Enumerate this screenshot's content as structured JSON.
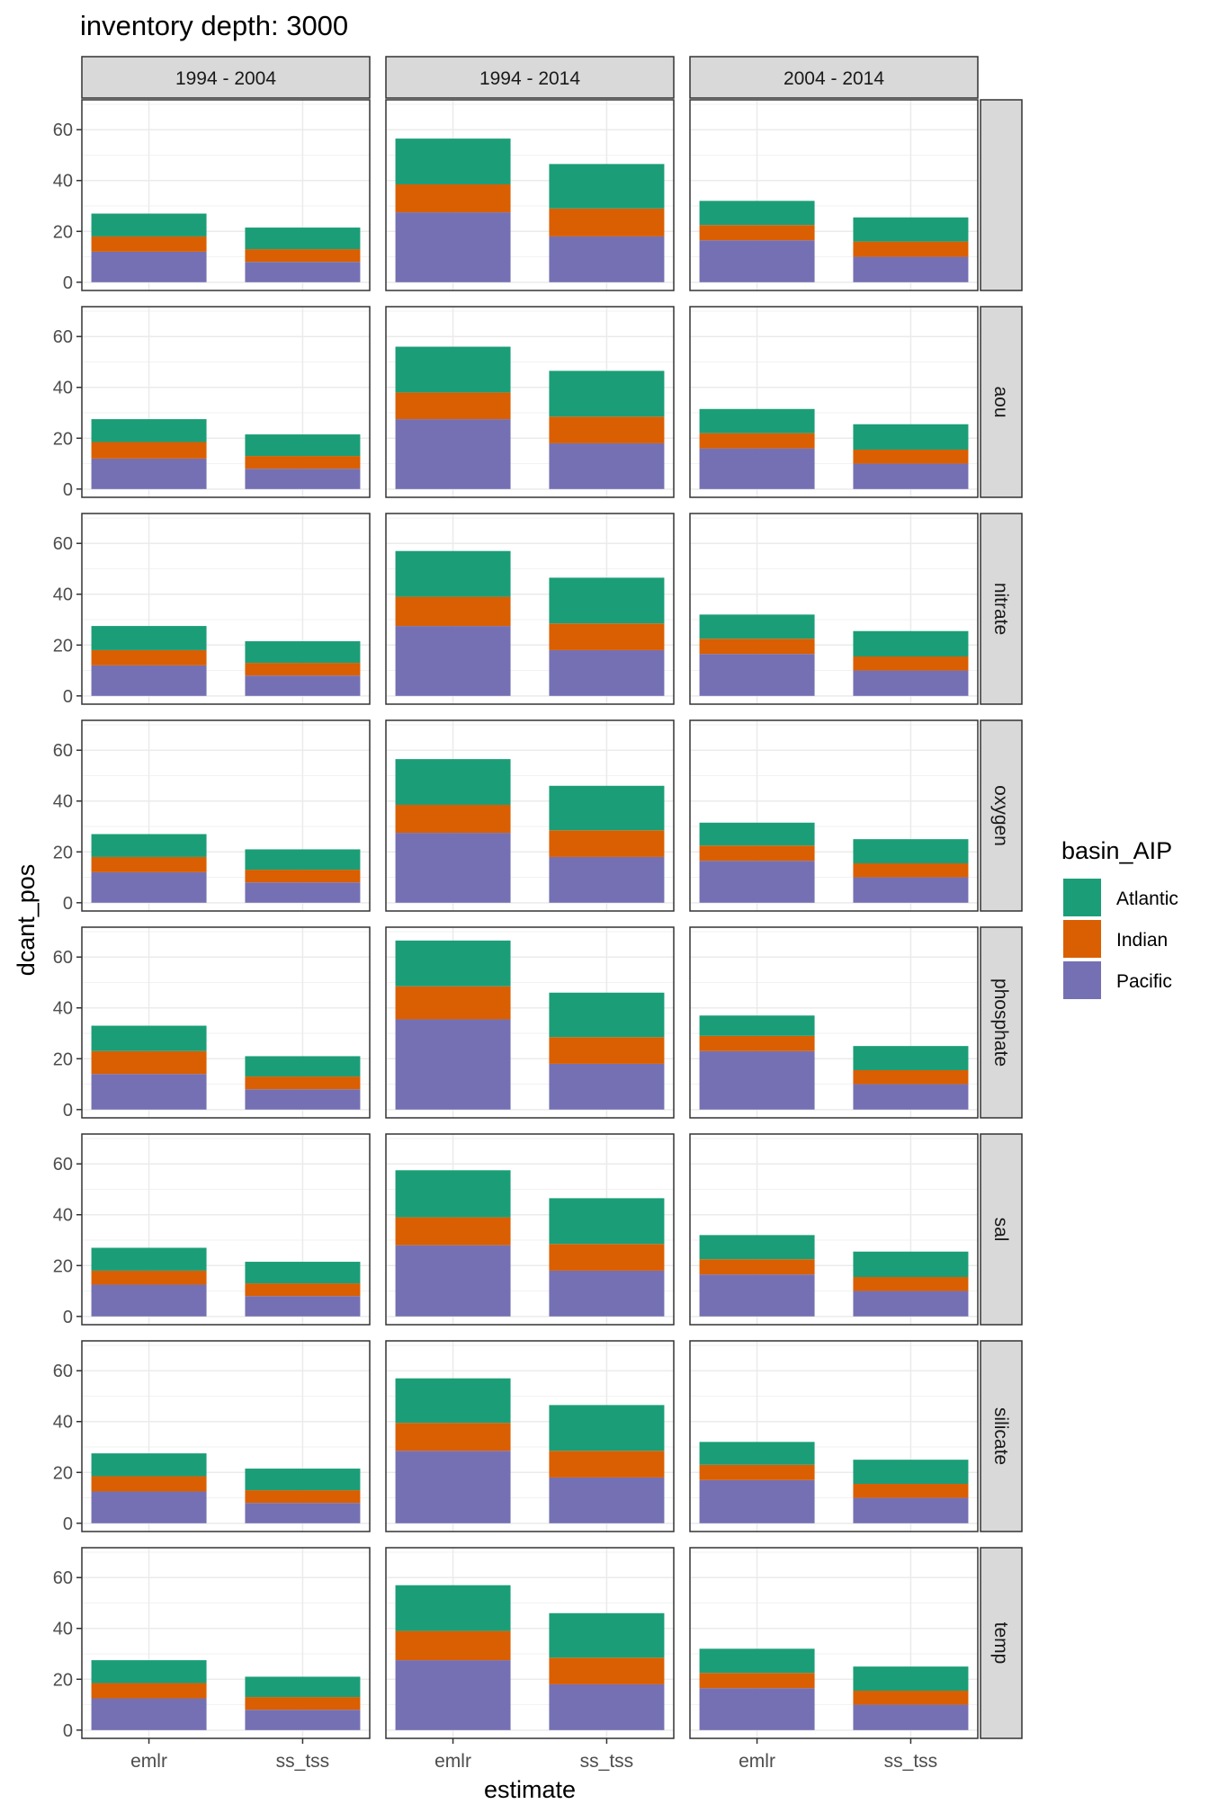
{
  "chart_data": {
    "type": "bar",
    "stacked": true,
    "faceted": true,
    "title": "inventory depth: 3000",
    "xlabel": "estimate",
    "ylabel": "dcant_pos",
    "ylim": [
      0,
      70
    ],
    "y_ticks": [
      0,
      20,
      40,
      60
    ],
    "grid": true,
    "legend": {
      "title": "basin_AIP",
      "position": "right",
      "entries": [
        "Atlantic",
        "Indian",
        "Pacific"
      ]
    },
    "colors": {
      "Atlantic": "#1b9e77",
      "Indian": "#d95f02",
      "Pacific": "#7570b3"
    },
    "categories": [
      "emlr",
      "ss_tss"
    ],
    "stack_order": [
      "Pacific",
      "Indian",
      "Atlantic"
    ],
    "col_facets": [
      "1994 - 2004",
      "1994 - 2014",
      "2004 - 2014"
    ],
    "row_facets": [
      "",
      "aou",
      "nitrate",
      "oxygen",
      "phosphate",
      "sal",
      "silicate",
      "temp"
    ],
    "panels": [
      [
        {
          "emlr": {
            "Pacific": 12,
            "Indian": 6,
            "Atlantic": 9
          },
          "ss_tss": {
            "Pacific": 8,
            "Indian": 5,
            "Atlantic": 8.5
          }
        },
        {
          "emlr": {
            "Pacific": 27.5,
            "Indian": 11,
            "Atlantic": 18
          },
          "ss_tss": {
            "Pacific": 18,
            "Indian": 11,
            "Atlantic": 17.5
          }
        },
        {
          "emlr": {
            "Pacific": 16.5,
            "Indian": 6,
            "Atlantic": 9.5
          },
          "ss_tss": {
            "Pacific": 10,
            "Indian": 6,
            "Atlantic": 9.5
          }
        }
      ],
      [
        {
          "emlr": {
            "Pacific": 12,
            "Indian": 6.5,
            "Atlantic": 9
          },
          "ss_tss": {
            "Pacific": 8,
            "Indian": 5,
            "Atlantic": 8.5
          }
        },
        {
          "emlr": {
            "Pacific": 27.5,
            "Indian": 10.5,
            "Atlantic": 18
          },
          "ss_tss": {
            "Pacific": 18,
            "Indian": 10.5,
            "Atlantic": 18
          }
        },
        {
          "emlr": {
            "Pacific": 16,
            "Indian": 6,
            "Atlantic": 9.5
          },
          "ss_tss": {
            "Pacific": 10,
            "Indian": 5.5,
            "Atlantic": 10
          }
        }
      ],
      [
        {
          "emlr": {
            "Pacific": 12,
            "Indian": 6,
            "Atlantic": 9.5
          },
          "ss_tss": {
            "Pacific": 8,
            "Indian": 5,
            "Atlantic": 8.5
          }
        },
        {
          "emlr": {
            "Pacific": 27.5,
            "Indian": 11.5,
            "Atlantic": 18
          },
          "ss_tss": {
            "Pacific": 18,
            "Indian": 10.5,
            "Atlantic": 18
          }
        },
        {
          "emlr": {
            "Pacific": 16.5,
            "Indian": 6,
            "Atlantic": 9.5
          },
          "ss_tss": {
            "Pacific": 10,
            "Indian": 5.5,
            "Atlantic": 10
          }
        }
      ],
      [
        {
          "emlr": {
            "Pacific": 12,
            "Indian": 6,
            "Atlantic": 9
          },
          "ss_tss": {
            "Pacific": 8,
            "Indian": 5,
            "Atlantic": 8
          }
        },
        {
          "emlr": {
            "Pacific": 27.5,
            "Indian": 11,
            "Atlantic": 18
          },
          "ss_tss": {
            "Pacific": 18,
            "Indian": 10.5,
            "Atlantic": 17.5
          }
        },
        {
          "emlr": {
            "Pacific": 16.5,
            "Indian": 6,
            "Atlantic": 9
          },
          "ss_tss": {
            "Pacific": 10,
            "Indian": 5.5,
            "Atlantic": 9.5
          }
        }
      ],
      [
        {
          "emlr": {
            "Pacific": 14,
            "Indian": 9,
            "Atlantic": 10
          },
          "ss_tss": {
            "Pacific": 8,
            "Indian": 5,
            "Atlantic": 8
          }
        },
        {
          "emlr": {
            "Pacific": 35.5,
            "Indian": 13,
            "Atlantic": 18
          },
          "ss_tss": {
            "Pacific": 18,
            "Indian": 10.5,
            "Atlantic": 17.5
          }
        },
        {
          "emlr": {
            "Pacific": 23,
            "Indian": 6,
            "Atlantic": 8
          },
          "ss_tss": {
            "Pacific": 10,
            "Indian": 5.5,
            "Atlantic": 9.5
          }
        }
      ],
      [
        {
          "emlr": {
            "Pacific": 12.5,
            "Indian": 5.5,
            "Atlantic": 9
          },
          "ss_tss": {
            "Pacific": 8,
            "Indian": 5,
            "Atlantic": 8.5
          }
        },
        {
          "emlr": {
            "Pacific": 28,
            "Indian": 11,
            "Atlantic": 18.5
          },
          "ss_tss": {
            "Pacific": 18,
            "Indian": 10.5,
            "Atlantic": 18
          }
        },
        {
          "emlr": {
            "Pacific": 16.5,
            "Indian": 6,
            "Atlantic": 9.5
          },
          "ss_tss": {
            "Pacific": 10,
            "Indian": 5.5,
            "Atlantic": 10
          }
        }
      ],
      [
        {
          "emlr": {
            "Pacific": 12.5,
            "Indian": 6,
            "Atlantic": 9
          },
          "ss_tss": {
            "Pacific": 8,
            "Indian": 5,
            "Atlantic": 8.5
          }
        },
        {
          "emlr": {
            "Pacific": 28.5,
            "Indian": 11,
            "Atlantic": 17.5
          },
          "ss_tss": {
            "Pacific": 18,
            "Indian": 10.5,
            "Atlantic": 18
          }
        },
        {
          "emlr": {
            "Pacific": 17,
            "Indian": 6,
            "Atlantic": 9
          },
          "ss_tss": {
            "Pacific": 10,
            "Indian": 5.5,
            "Atlantic": 9.5
          }
        }
      ],
      [
        {
          "emlr": {
            "Pacific": 12.5,
            "Indian": 6,
            "Atlantic": 9
          },
          "ss_tss": {
            "Pacific": 8,
            "Indian": 5,
            "Atlantic": 8
          }
        },
        {
          "emlr": {
            "Pacific": 27.5,
            "Indian": 11.5,
            "Atlantic": 18
          },
          "ss_tss": {
            "Pacific": 18,
            "Indian": 10.5,
            "Atlantic": 17.5
          }
        },
        {
          "emlr": {
            "Pacific": 16.5,
            "Indian": 6,
            "Atlantic": 9.5
          },
          "ss_tss": {
            "Pacific": 10,
            "Indian": 5.5,
            "Atlantic": 9.5
          }
        }
      ]
    ]
  }
}
